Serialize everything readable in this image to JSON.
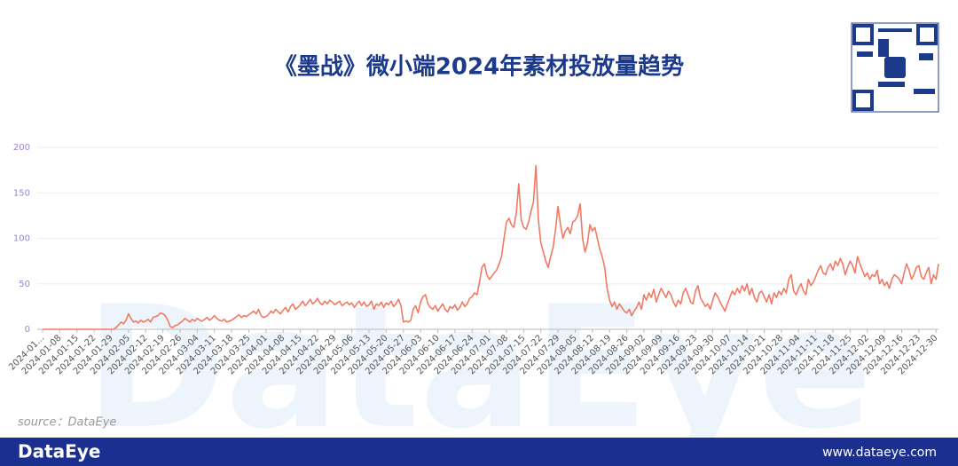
{
  "chart_data": {
    "type": "line",
    "title": "《墨战》微小端2024年素材投放量趋势",
    "color": "#f07a63",
    "ylim": [
      0,
      200
    ],
    "yticks": [
      0,
      50,
      100,
      150,
      200
    ],
    "grid": true,
    "categories": [
      "2024-01...",
      null,
      null,
      null,
      null,
      null,
      null,
      "2024-01-08",
      null,
      null,
      null,
      null,
      null,
      null,
      "2024-01-15",
      null,
      null,
      null,
      null,
      null,
      null,
      "2024-01-22",
      null,
      null,
      null,
      null,
      null,
      null,
      "2024-01-29",
      null,
      null,
      null,
      null,
      null,
      null,
      "2024-02-05",
      null,
      null,
      null,
      null,
      null,
      null,
      "2024-02-12",
      null,
      null,
      null,
      null,
      null,
      null,
      "2024-02-19",
      null,
      null,
      null,
      null,
      null,
      null,
      "2024-02-26",
      null,
      null,
      null,
      null,
      null,
      null,
      "2024-03-04",
      null,
      null,
      null,
      null,
      null,
      null,
      "2024-03-11",
      null,
      null,
      null,
      null,
      null,
      null,
      "2024-03-18",
      null,
      null,
      null,
      null,
      null,
      null,
      "2024-03-25",
      null,
      null,
      null,
      null,
      null,
      null,
      "2024-04-01",
      null,
      null,
      null,
      null,
      null,
      null,
      "2024-04-08",
      null,
      null,
      null,
      null,
      null,
      null,
      "2024-04-15",
      null,
      null,
      null,
      null,
      null,
      null,
      "2024-04-22",
      null,
      null,
      null,
      null,
      null,
      null,
      "2024-04-29",
      null,
      null,
      null,
      null,
      null,
      null,
      "2024-05-06",
      null,
      null,
      null,
      null,
      null,
      null,
      "2024-05-13",
      null,
      null,
      null,
      null,
      null,
      null,
      "2024-05-20",
      null,
      null,
      null,
      null,
      null,
      null,
      "2024-05-27",
      null,
      null,
      null,
      null,
      null,
      null,
      "2024-06-03",
      null,
      null,
      null,
      null,
      null,
      null,
      "2024-06-10",
      null,
      null,
      null,
      null,
      null,
      null,
      "2024-06-17",
      null,
      null,
      null,
      null,
      null,
      null,
      "2024-06-24",
      null,
      null,
      null,
      null,
      null,
      null,
      "2024-07-01",
      null,
      null,
      null,
      null,
      null,
      null,
      "2024-07-08",
      null,
      null,
      null,
      null,
      null,
      null,
      "2024-07-15",
      null,
      null,
      null,
      null,
      null,
      null,
      "2024-07-22",
      null,
      null,
      null,
      null,
      null,
      null,
      "2024-07-29",
      null,
      null,
      null,
      null,
      null,
      null,
      "2024-08-05",
      null,
      null,
      null,
      null,
      null,
      null,
      "2024-08-12",
      null,
      null,
      null,
      null,
      null,
      null,
      "2024-08-19",
      null,
      null,
      null,
      null,
      null,
      null,
      "2024-08-26",
      null,
      null,
      null,
      null,
      null,
      null,
      "2024-09-02",
      null,
      null,
      null,
      null,
      null,
      null,
      "2024-09-09",
      null,
      null,
      null,
      null,
      null,
      null,
      "2024-09-16",
      null,
      null,
      null,
      null,
      null,
      null,
      "2024-09-23",
      null,
      null,
      null,
      null,
      null,
      null,
      "2024-09-30",
      null,
      null,
      null,
      null,
      null,
      null,
      "2024-10-07",
      null,
      null,
      null,
      null,
      null,
      null,
      "2024-10-14",
      null,
      null,
      null,
      null,
      null,
      null,
      "2024-10-21",
      null,
      null,
      null,
      null,
      null,
      null,
      "2024-10-28",
      null,
      null,
      null,
      null,
      null,
      null,
      "2024-11-04",
      null,
      null,
      null,
      null,
      null,
      null,
      "2024-11-11",
      null,
      null,
      null,
      null,
      null,
      null,
      "2024-11-18",
      null,
      null,
      null,
      null,
      null,
      null,
      "2024-11-25",
      null,
      null,
      null,
      null,
      null,
      null,
      "2024-12-02",
      null,
      null,
      null,
      null,
      null,
      null,
      "2024-12-09",
      null,
      null,
      null,
      null,
      null,
      null,
      "2024-12-16",
      null,
      null,
      null,
      null,
      null,
      null,
      "2024-12-23",
      null,
      null,
      null,
      null,
      null,
      null,
      "2024-12-30",
      null
    ],
    "values": [
      0,
      0,
      0,
      0,
      0,
      0,
      0,
      0,
      0,
      0,
      0,
      0,
      0,
      0,
      0,
      0,
      0,
      0,
      0,
      0,
      0,
      0,
      0,
      0,
      0,
      0,
      0,
      0,
      0,
      0,
      2,
      5,
      8,
      6,
      10,
      17,
      12,
      8,
      9,
      7,
      10,
      8,
      9,
      11,
      8,
      13,
      14,
      15,
      18,
      17,
      15,
      10,
      3,
      2,
      4,
      5,
      7,
      9,
      12,
      10,
      8,
      11,
      9,
      12,
      10,
      9,
      11,
      13,
      10,
      12,
      15,
      12,
      10,
      9,
      11,
      8,
      9,
      10,
      12,
      14,
      16,
      13,
      15,
      14,
      16,
      18,
      20,
      17,
      22,
      15,
      13,
      14,
      16,
      20,
      18,
      22,
      19,
      17,
      21,
      24,
      19,
      25,
      28,
      22,
      24,
      27,
      31,
      26,
      29,
      33,
      28,
      30,
      34,
      29,
      27,
      31,
      28,
      32,
      30,
      27,
      29,
      31,
      26,
      28,
      30,
      27,
      29,
      24,
      28,
      31,
      26,
      30,
      25,
      27,
      31,
      22,
      28,
      26,
      30,
      24,
      29,
      27,
      31,
      25,
      28,
      33,
      26,
      8,
      9,
      8,
      10,
      22,
      26,
      18,
      30,
      36,
      38,
      28,
      24,
      22,
      26,
      20,
      24,
      28,
      22,
      19,
      25,
      23,
      27,
      21,
      24,
      30,
      25,
      28,
      34,
      36,
      40,
      38,
      52,
      68,
      72,
      60,
      55,
      58,
      62,
      65,
      72,
      80,
      100,
      118,
      122,
      115,
      112,
      128,
      160,
      120,
      112,
      110,
      118,
      130,
      140,
      180,
      120,
      95,
      85,
      75,
      68,
      80,
      90,
      110,
      135,
      115,
      100,
      108,
      112,
      105,
      118,
      120,
      125,
      138,
      100,
      85,
      95,
      115,
      108,
      112,
      100,
      88,
      80,
      68,
      45,
      32,
      25,
      30,
      22,
      28,
      24,
      20,
      18,
      22,
      15,
      20,
      24,
      30,
      22,
      38,
      32,
      40,
      35,
      44,
      30,
      38,
      45,
      40,
      35,
      42,
      38,
      30,
      25,
      32,
      28,
      40,
      45,
      38,
      30,
      28,
      42,
      48,
      35,
      30,
      25,
      28,
      22,
      32,
      40,
      36,
      30,
      25,
      20,
      28,
      35,
      42,
      38,
      45,
      40,
      48,
      42,
      50,
      38,
      45,
      35,
      30,
      40,
      42,
      36,
      30,
      38,
      28,
      40,
      35,
      42,
      38,
      45,
      40,
      55,
      60,
      42,
      38,
      45,
      50,
      42,
      38,
      55,
      48,
      52,
      58,
      65,
      70,
      62,
      60,
      68,
      72,
      65,
      75,
      70,
      78,
      72,
      60,
      68,
      75,
      70,
      62,
      80,
      72,
      65,
      58,
      62,
      55,
      60,
      58,
      65,
      50,
      55,
      48,
      52,
      45,
      55,
      60,
      58,
      55,
      50,
      62,
      72,
      65,
      55,
      60,
      68,
      70,
      58,
      55,
      62,
      68,
      50,
      60,
      55,
      72
    ]
  },
  "watermark": "DataEye",
  "source": "source：DataEye",
  "footer": {
    "brand": "DataEye",
    "url": "www.dataeye.com"
  }
}
